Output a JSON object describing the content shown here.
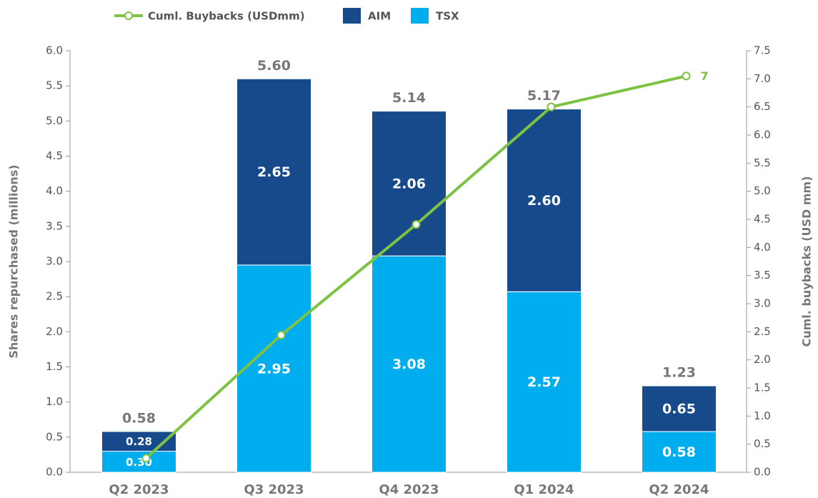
{
  "chart_data": {
    "type": "bar",
    "categories": [
      "Q2 2023",
      "Q3 2023",
      "Q4 2023",
      "Q1 2024",
      "Q2 2024"
    ],
    "series": [
      {
        "name": "TSX",
        "color": "#00adef",
        "values": [
          0.3,
          2.95,
          3.08,
          2.57,
          0.58
        ],
        "value_labels": [
          "0.30",
          "2.95",
          "3.08",
          "2.57",
          "0.58"
        ]
      },
      {
        "name": "AIM",
        "color": "#174a8b",
        "values": [
          0.28,
          2.65,
          2.06,
          2.6,
          0.65
        ],
        "value_labels": [
          "0.28",
          "2.65",
          "2.06",
          "2.60",
          "0.65"
        ]
      },
      {
        "name": "Cuml. Buybacks (USDmm)",
        "type": "line",
        "axis": "y2",
        "color": "#7dc242",
        "values": [
          0.25,
          2.44,
          4.41,
          6.5,
          7.05
        ],
        "value_labels": [
          null,
          null,
          null,
          null,
          "7"
        ]
      }
    ],
    "totals": {
      "values": [
        0.58,
        5.6,
        5.14,
        5.17,
        1.23
      ],
      "value_labels": [
        "0.58",
        "5.60",
        "5.14",
        "5.17",
        "1.23"
      ]
    },
    "ylabel": "Shares repurchased (millions)",
    "y2label": "Cuml. buybacks (USD mm)",
    "ylim": [
      0,
      6
    ],
    "yticks": [
      {
        "value": 0,
        "label": "0.0"
      },
      {
        "value": 0.5,
        "label": "0.5"
      },
      {
        "value": 1,
        "label": "1.0"
      },
      {
        "value": 1.5,
        "label": "1.5"
      },
      {
        "value": 2,
        "label": "2.0"
      },
      {
        "value": 2.5,
        "label": "2.5"
      },
      {
        "value": 3,
        "label": "3.0"
      },
      {
        "value": 3.5,
        "label": "3.5"
      },
      {
        "value": 4,
        "label": "4.0"
      },
      {
        "value": 4.5,
        "label": "4.5"
      },
      {
        "value": 5,
        "label": "5.0"
      },
      {
        "value": 5.5,
        "label": "5.5"
      },
      {
        "value": 6,
        "label": "6.0"
      }
    ],
    "y2lim": [
      0,
      7.5
    ],
    "y2ticks": [
      {
        "value": 0,
        "label": "0.0"
      },
      {
        "value": 0.5,
        "label": "0.5"
      },
      {
        "value": 1,
        "label": "1.0"
      },
      {
        "value": 1.5,
        "label": "1.5"
      },
      {
        "value": 2,
        "label": "2.0"
      },
      {
        "value": 2.5,
        "label": "2.5"
      },
      {
        "value": 3,
        "label": "3.0"
      },
      {
        "value": 3.5,
        "label": "3.5"
      },
      {
        "value": 4,
        "label": "4.0"
      },
      {
        "value": 4.5,
        "label": "4.5"
      },
      {
        "value": 5,
        "label": "5.0"
      },
      {
        "value": 5.5,
        "label": "5.5"
      },
      {
        "value": 6,
        "label": "6.0"
      },
      {
        "value": 6.5,
        "label": "6.5"
      },
      {
        "value": 7,
        "label": "7.0"
      },
      {
        "value": 7.5,
        "label": "7.5"
      }
    ],
    "grid": false,
    "legend": "top"
  }
}
